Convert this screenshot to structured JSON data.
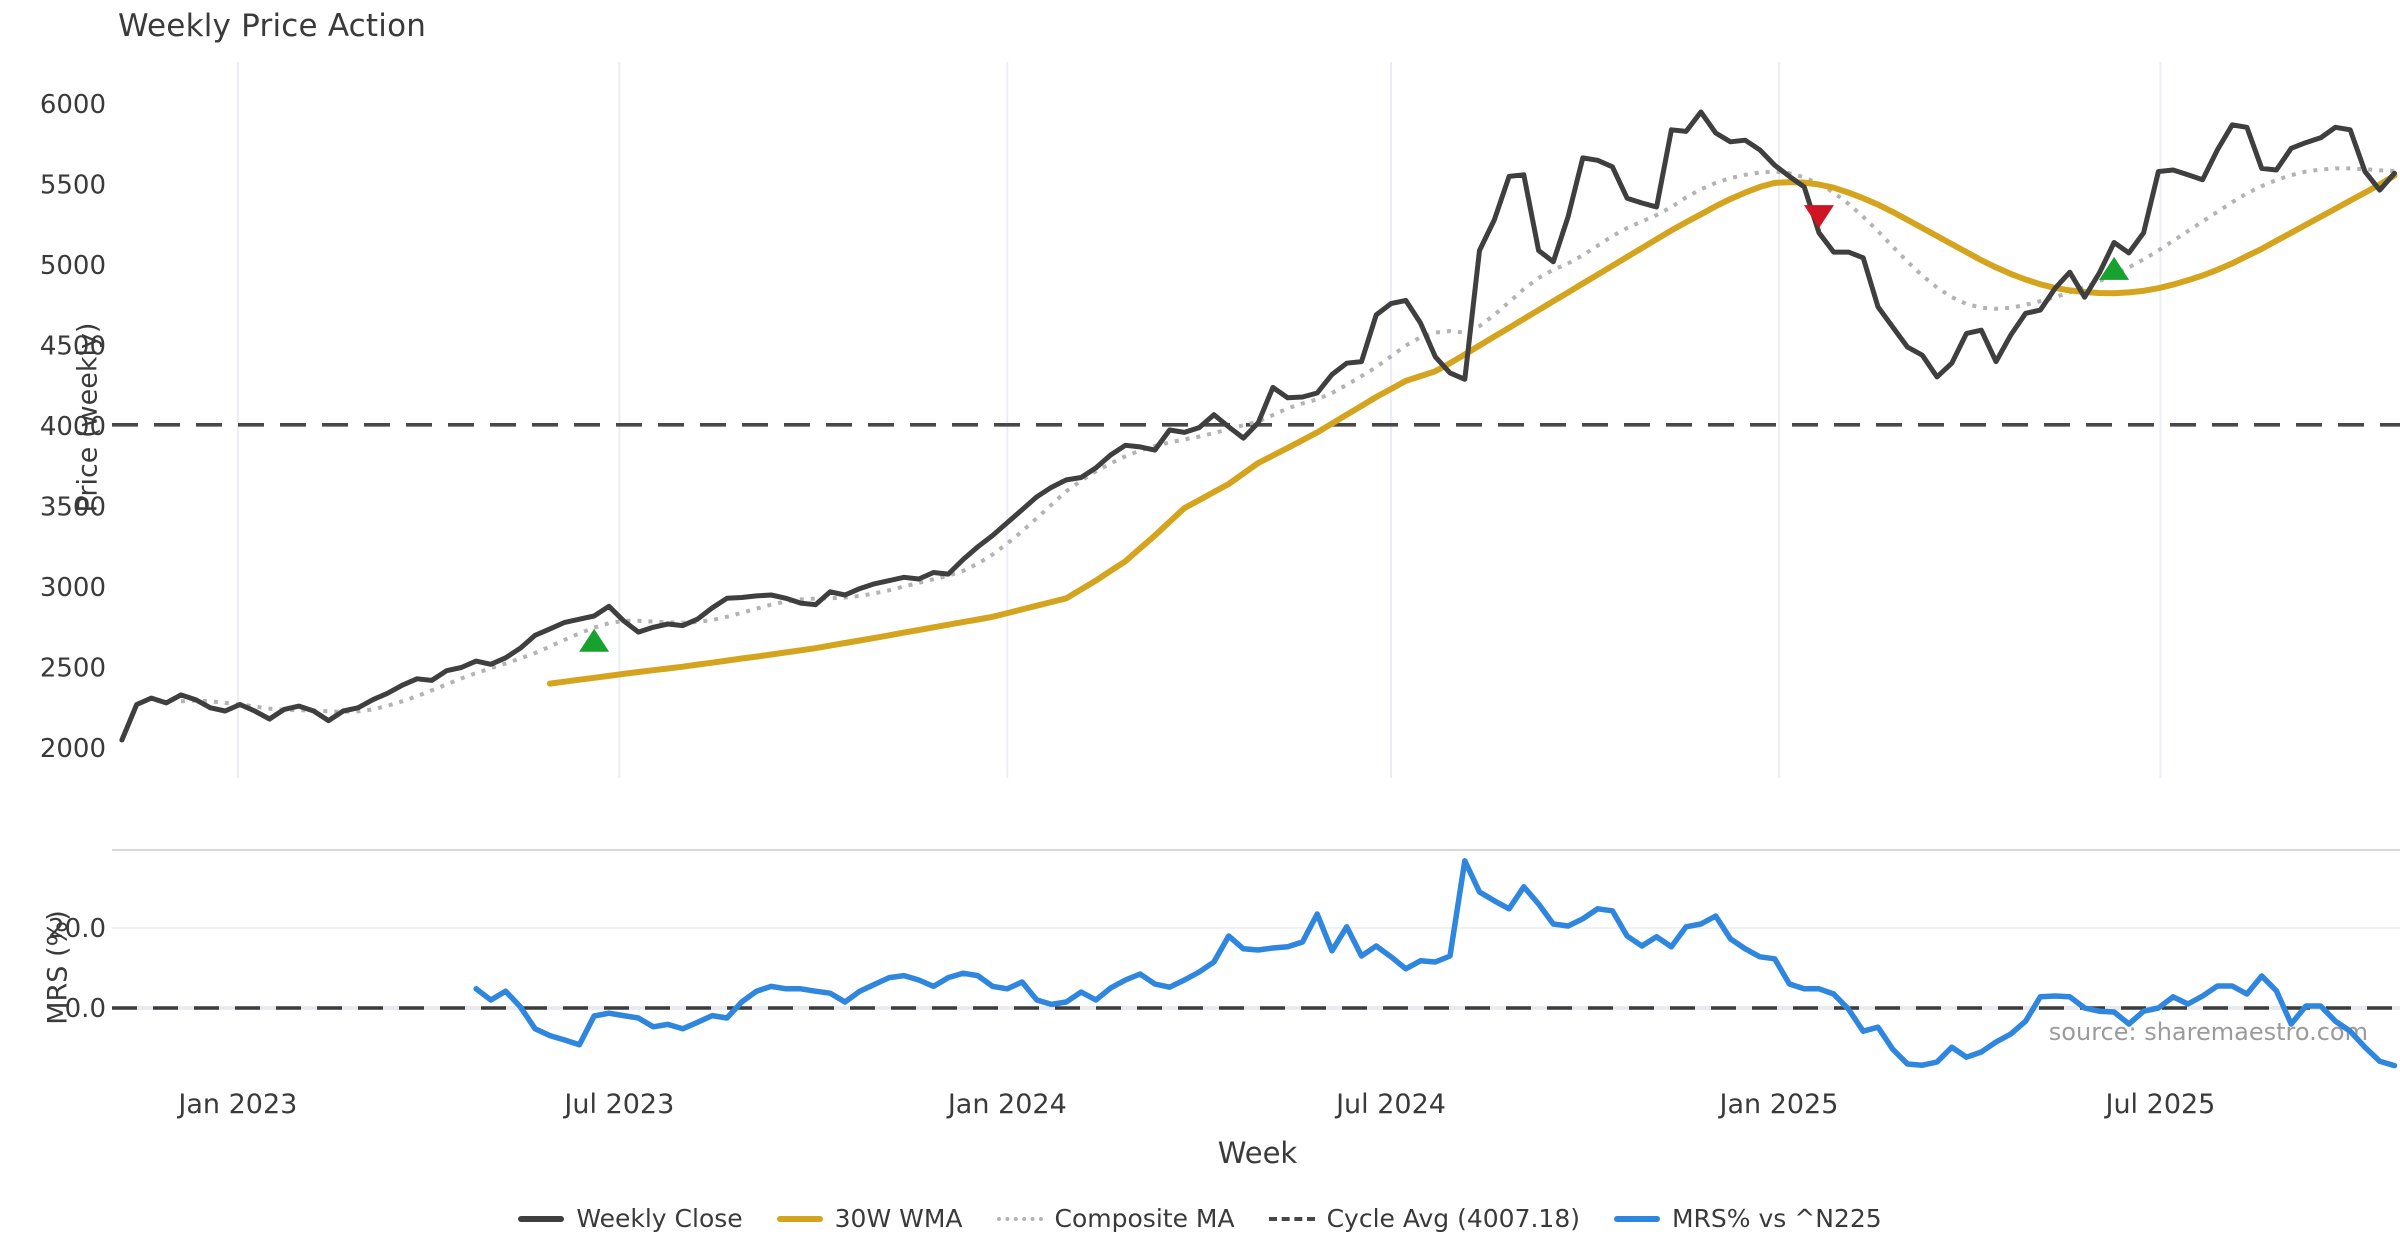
{
  "title": "Weekly Price Action",
  "source_note": "source: sharemaestro.com",
  "axes": {
    "price_axis": {
      "label": "Price (weekly)"
    },
    "mrs_axis": {
      "label": "MRS (%)"
    },
    "x_axis": {
      "label": "Week"
    }
  },
  "legend": [
    {
      "label": "Weekly Close",
      "color": "#3f3f3f",
      "style": "solid"
    },
    {
      "label": "30W WMA",
      "color": "#d5a41e",
      "style": "solid"
    },
    {
      "label": "Composite MA",
      "color": "#b3b3b3",
      "style": "dotted"
    },
    {
      "label": "Cycle Avg (4007.18)",
      "color": "#474747",
      "style": "dashed"
    },
    {
      "label": "MRS% vs ^N225",
      "color": "#2e86de",
      "style": "solid"
    }
  ],
  "chart_data": {
    "type": "line",
    "title": "Weekly Price Action",
    "x_axis": {
      "label": "Week",
      "start_date": "2022-11-07",
      "step_days": 7,
      "ticks": [
        {
          "label": "Jan 2023",
          "week": 7.86
        },
        {
          "label": "Jul 2023",
          "week": 33.71
        },
        {
          "label": "Jan 2024",
          "week": 60.0
        },
        {
          "label": "Jul 2024",
          "week": 86.0
        },
        {
          "label": "Jan 2025",
          "week": 112.29
        },
        {
          "label": "Jul 2025",
          "week": 138.14
        }
      ]
    },
    "panels": [
      {
        "name": "price",
        "y_label": "Price (weekly)",
        "y_ticks": [
          2000,
          2500,
          3000,
          3500,
          4000,
          4500,
          5000,
          5500,
          6000
        ],
        "ylim": [
          1920,
          6280
        ],
        "grid": "vertical-only",
        "reference_line": {
          "name": "Cycle Avg",
          "value": 4007.18,
          "color": "#474747",
          "style": "dashed"
        },
        "series": [
          {
            "name": "Weekly Close",
            "color": "#3f3f3f",
            "style": "solid",
            "width": 5,
            "start_week": 0,
            "values": [
              2050,
              2270,
              2310,
              2280,
              2330,
              2300,
              2250,
              2230,
              2270,
              2230,
              2180,
              2240,
              2260,
              2230,
              2170,
              2230,
              2250,
              2300,
              2340,
              2390,
              2430,
              2420,
              2480,
              2500,
              2540,
              2520,
              2560,
              2620,
              2700,
              2740,
              2780,
              2800,
              2820,
              2880,
              2790,
              2720,
              2750,
              2770,
              2760,
              2800,
              2870,
              2930,
              2935,
              2945,
              2950,
              2930,
              2900,
              2890,
              2970,
              2950,
              2990,
              3020,
              3040,
              3060,
              3050,
              3090,
              3080,
              3170,
              3250,
              3320,
              3400,
              3480,
              3560,
              3620,
              3665,
              3680,
              3740,
              3820,
              3880,
              3870,
              3850,
              3975,
              3960,
              3990,
              4070,
              3995,
              3925,
              4020,
              4240,
              4175,
              4180,
              4205,
              4320,
              4390,
              4400,
              4690,
              4760,
              4780,
              4640,
              4430,
              4330,
              4290,
              5090,
              5280,
              5550,
              5560,
              5090,
              5020,
              5300,
              5665,
              5650,
              5610,
              5415,
              5385,
              5360,
              5840,
              5830,
              5950,
              5820,
              5765,
              5775,
              5715,
              5620,
              5550,
              5485,
              5200,
              5080,
              5080,
              5045,
              4740,
              4615,
              4490,
              4440,
              4305,
              4390,
              4575,
              4595,
              4400,
              4565,
              4700,
              4720,
              4855,
              4955,
              4800,
              4950,
              5140,
              5075,
              5200,
              5580,
              5590,
              5560,
              5530,
              5715,
              5870,
              5855,
              5600,
              5590,
              5725,
              5760,
              5790,
              5855,
              5840,
              5580,
              5465,
              5570
            ]
          },
          {
            "name": "30W WMA",
            "color": "#d5a41e",
            "style": "solid",
            "width": 6,
            "start_week": 29,
            "values": [
              2400,
              2412,
              2424,
              2436,
              2448,
              2460,
              2472,
              2483,
              2494,
              2505,
              2518,
              2530,
              2543,
              2556,
              2568,
              2581,
              2594,
              2607,
              2620,
              2636,
              2652,
              2668,
              2684,
              2700,
              2717,
              2733,
              2750,
              2766,
              2782,
              2798,
              2815,
              2838,
              2861,
              2884,
              2907,
              2930,
              2985,
              3040,
              3100,
              3160,
              3240,
              3320,
              3405,
              3490,
              3540,
              3590,
              3640,
              3705,
              3770,
              3817,
              3864,
              3912,
              3960,
              4015,
              4070,
              4125,
              4180,
              4230,
              4280,
              4310,
              4340,
              4390,
              4445,
              4500,
              4555,
              4610,
              4665,
              4720,
              4775,
              4830,
              4885,
              4940,
              4995,
              5050,
              5105,
              5160,
              5215,
              5265,
              5315,
              5365,
              5410,
              5450,
              5485,
              5510,
              5515,
              5512,
              5500,
              5480,
              5450,
              5415,
              5375,
              5330,
              5280,
              5230,
              5180,
              5130,
              5080,
              5030,
              4985,
              4945,
              4910,
              4880,
              4858,
              4842,
              4832,
              4826,
              4825,
              4830,
              4840,
              4856,
              4878,
              4905,
              4935,
              4970,
              5010,
              5055,
              5100,
              5150,
              5200,
              5250,
              5300,
              5350,
              5400,
              5450,
              5500,
              5555
            ]
          },
          {
            "name": "Composite MA",
            "color": "#b3b3b3",
            "style": "dotted",
            "width": 4,
            "start_week": 4,
            "values": [
              2290,
              2295,
              2290,
              2280,
              2270,
              2258,
              2245,
              2237,
              2235,
              2232,
              2228,
              2225,
              2228,
              2240,
              2262,
              2290,
              2322,
              2358,
              2395,
              2432,
              2465,
              2495,
              2525,
              2556,
              2590,
              2630,
              2672,
              2712,
              2748,
              2775,
              2790,
              2790,
              2785,
              2780,
              2778,
              2782,
              2795,
              2815,
              2840,
              2866,
              2890,
              2910,
              2923,
              2928,
              2930,
              2935,
              2945,
              2960,
              2980,
              3003,
              3026,
              3048,
              3070,
              3100,
              3145,
              3202,
              3270,
              3346,
              3428,
              3512,
              3595,
              3660,
              3718,
              3768,
              3812,
              3848,
              3876,
              3898,
              3916,
              3934,
              3956,
              3980,
              4005,
              4028,
              4068,
              4110,
              4140,
              4165,
              4205,
              4255,
              4310,
              4365,
              4432,
              4500,
              4550,
              4580,
              4590,
              4580,
              4620,
              4690,
              4770,
              4850,
              4920,
              4970,
              5010,
              5060,
              5120,
              5180,
              5230,
              5270,
              5310,
              5360,
              5420,
              5470,
              5510,
              5540,
              5560,
              5575,
              5580,
              5570,
              5545,
              5505,
              5450,
              5380,
              5300,
              5210,
              5115,
              5020,
              4935,
              4860,
              4800,
              4758,
              4735,
              4728,
              4735,
              4752,
              4775,
              4800,
              4830,
              4862,
              4900,
              4940,
              4985,
              5035,
              5090,
              5150,
              5210,
              5270,
              5330,
              5390,
              5445,
              5490,
              5528,
              5558,
              5580,
              5593,
              5600,
              5600,
              5595,
              5588,
              5584
            ]
          }
        ],
        "markers": [
          {
            "type": "buy",
            "week": 32,
            "price": 2660,
            "color": "#17a12e"
          },
          {
            "type": "sell",
            "week": 115,
            "price": 5310,
            "color": "#cf1423"
          },
          {
            "type": "buy",
            "week": 135,
            "price": 4970,
            "color": "#17a12e"
          }
        ]
      },
      {
        "name": "mrs",
        "y_label": "MRS (%)",
        "y_ticks": [
          0.0,
          20.0
        ],
        "ylim": [
          -18,
          39.5
        ],
        "reference_line": {
          "name": "Zero",
          "value": 0.0,
          "color": "#3c3c3c",
          "style": "dashed"
        },
        "series": [
          {
            "name": "MRS% vs ^N225",
            "color": "#2e86de",
            "style": "solid",
            "width": 5.5,
            "start_week": 24,
            "values": [
              4.8,
              2.0,
              4.2,
              0.3,
              -5.2,
              -6.9,
              -8.0,
              -9.2,
              -2.0,
              -1.3,
              -1.9,
              -2.5,
              -4.7,
              -4.1,
              -5.2,
              -3.6,
              -1.9,
              -2.5,
              1.5,
              4.2,
              5.4,
              4.8,
              4.8,
              4.2,
              3.7,
              1.5,
              4.2,
              5.9,
              7.6,
              8.1,
              7.0,
              5.4,
              7.6,
              8.7,
              8.1,
              5.4,
              4.8,
              6.5,
              2.0,
              0.9,
              1.5,
              4.0,
              2.0,
              5.0,
              7.0,
              8.5,
              6.0,
              5.2,
              7.0,
              9.0,
              11.5,
              18.0,
              14.8,
              14.5,
              15.0,
              15.3,
              16.5,
              23.5,
              14.3,
              20.3,
              13.0,
              15.5,
              12.8,
              9.8,
              11.8,
              11.5,
              13.0,
              36.8,
              29.0,
              26.8,
              24.8,
              30.3,
              26.0,
              21.0,
              20.5,
              22.3,
              24.8,
              24.3,
              18.0,
              15.5,
              17.8,
              15.3,
              20.3,
              21.0,
              23.0,
              17.3,
              14.8,
              12.8,
              12.3,
              6.0,
              4.8,
              4.8,
              3.5,
              -0.3,
              -5.8,
              -4.8,
              -10.3,
              -14.0,
              -14.3,
              -13.5,
              -9.8,
              -12.3,
              -11.0,
              -8.5,
              -6.5,
              -3.3,
              2.8,
              3.0,
              2.8,
              0.0,
              -0.8,
              -1.0,
              -4.0,
              -0.8,
              0.0,
              2.8,
              1.0,
              3.0,
              5.5,
              5.5,
              3.5,
              8.0,
              4.3,
              -4.0,
              0.5,
              0.5,
              -3.3,
              -5.8,
              -9.8,
              -13.3,
              -14.4
            ]
          }
        ]
      }
    ]
  }
}
